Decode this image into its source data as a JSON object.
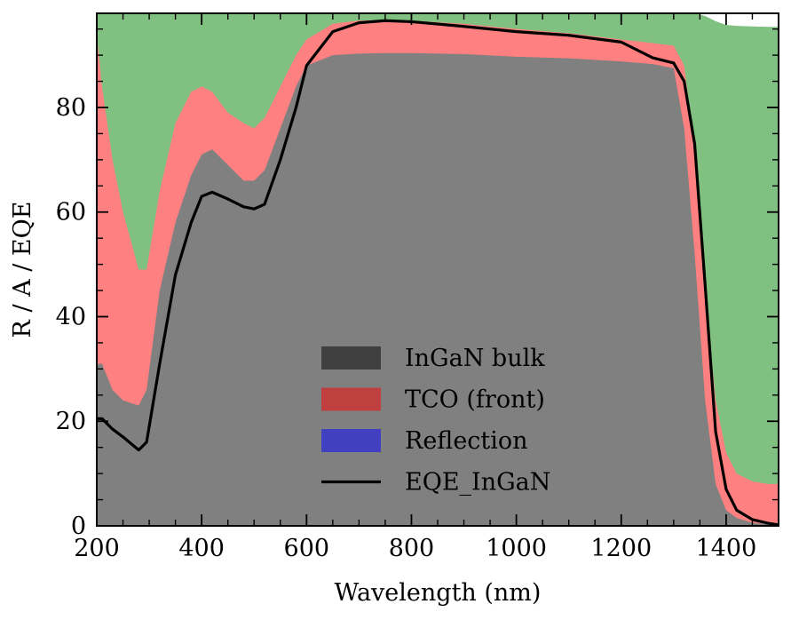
{
  "chart_data": {
    "type": "area",
    "title": "",
    "xlabel": "Wavelength (nm)",
    "ylabel": "R / A / EQE",
    "xlim": [
      200,
      1500
    ],
    "ylim": [
      0,
      98
    ],
    "xticks": [
      200,
      400,
      600,
      800,
      1000,
      1200,
      1400
    ],
    "yticks": [
      0,
      20,
      40,
      60,
      80
    ],
    "grid": false,
    "legend_position": "center-bottom",
    "x": [
      200,
      210,
      230,
      250,
      280,
      295,
      320,
      350,
      380,
      400,
      420,
      450,
      480,
      500,
      520,
      550,
      580,
      600,
      650,
      700,
      750,
      800,
      900,
      1000,
      1100,
      1200,
      1260,
      1300,
      1320,
      1340,
      1360,
      1380,
      1400,
      1420,
      1450,
      1480,
      1500
    ],
    "series": [
      {
        "name": "InGaN bulk",
        "legend_color": "#404040",
        "fill_color": "#808080",
        "values": [
          31,
          31,
          26,
          24,
          23,
          26,
          45,
          58,
          67,
          71,
          72,
          69,
          66,
          66,
          68,
          76,
          84,
          88,
          90,
          90.3,
          90.4,
          90.4,
          90.2,
          89.7,
          89.4,
          88.8,
          88.3,
          87.5,
          76,
          52,
          24,
          8,
          3,
          1.5,
          0.6,
          0.3,
          0.2
        ]
      },
      {
        "name": "TCO (front)",
        "legend_color": "#c04040",
        "fill_color": "#ff8080",
        "values": [
          94,
          84,
          70,
          60,
          49,
          49,
          64,
          77,
          83,
          84,
          83,
          79,
          77,
          76,
          78,
          84,
          90,
          93,
          96,
          96.6,
          96.8,
          96.6,
          96,
          95,
          94.2,
          93,
          92.3,
          91.8,
          88,
          72,
          45,
          24,
          14,
          10,
          8.5,
          8,
          8
        ]
      },
      {
        "name": "Reflection",
        "legend_color": "#4040c0",
        "fill_color": "#80c080",
        "values": [
          98,
          98,
          98,
          98,
          98,
          98,
          98,
          98,
          98,
          98,
          98,
          98,
          98,
          98,
          98,
          98,
          98,
          98,
          98,
          98,
          98,
          98,
          98,
          98,
          98,
          98,
          98,
          98,
          98,
          98,
          97.5,
          96.5,
          95.8,
          95.6,
          95.5,
          95.4,
          95.4
        ]
      },
      {
        "name": "EQE_InGaN",
        "type": "line",
        "color": "#000000",
        "values": [
          20.5,
          20.5,
          18.5,
          17,
          14.5,
          16,
          31,
          48,
          58,
          63,
          63.8,
          62.5,
          61,
          60.6,
          61.5,
          70,
          80,
          88,
          94.5,
          96.2,
          96.6,
          96.4,
          95.5,
          94.5,
          93.8,
          92.5,
          89.5,
          88.5,
          85,
          73,
          46,
          18,
          7,
          3,
          1.2,
          0.5,
          0.2
        ]
      }
    ]
  }
}
